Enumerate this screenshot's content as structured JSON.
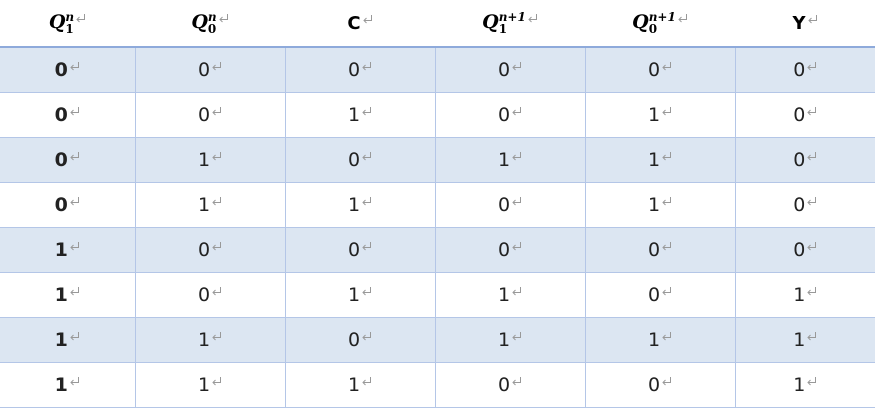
{
  "table": {
    "header": [
      {
        "base": "Q",
        "sub": "1",
        "sup": "n"
      },
      {
        "base": "Q",
        "sub": "0",
        "sup": "n"
      },
      {
        "base": "C"
      },
      {
        "base": "Q",
        "sub": "1",
        "sup": "n+1"
      },
      {
        "base": "Q",
        "sub": "0",
        "sup": "n+1"
      },
      {
        "base": "Y"
      }
    ],
    "rows": [
      [
        0,
        0,
        0,
        0,
        0,
        0
      ],
      [
        0,
        0,
        1,
        0,
        1,
        0
      ],
      [
        0,
        1,
        0,
        1,
        1,
        0
      ],
      [
        0,
        1,
        1,
        0,
        1,
        0
      ],
      [
        1,
        0,
        0,
        0,
        0,
        0
      ],
      [
        1,
        0,
        1,
        1,
        0,
        1
      ],
      [
        1,
        1,
        0,
        1,
        1,
        1
      ],
      [
        1,
        1,
        1,
        0,
        0,
        1
      ]
    ]
  }
}
